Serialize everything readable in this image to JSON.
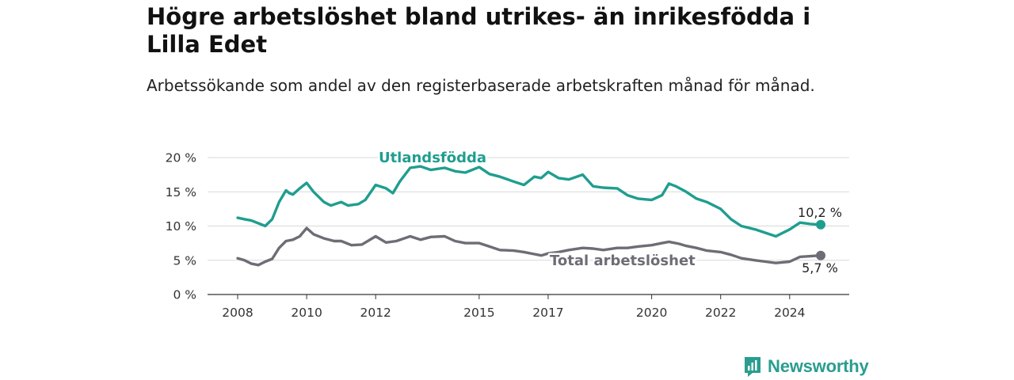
{
  "title": "Högre arbetslöshet bland utrikes- än inrikesfödda i Lilla Edet",
  "subtitle": "Arbetssökande som andel av den registerbaserade arbetskraften månad för månad.",
  "brand": {
    "name": "Newsworthy",
    "color": "#2a9d8f"
  },
  "chart_data": {
    "type": "line",
    "x_ticks": [
      "2008",
      "2010",
      "2012",
      "2015",
      "2017",
      "2020",
      "2022",
      "2024"
    ],
    "y_ticks": [
      "0 %",
      "5 %",
      "10 %",
      "15 %",
      "20 %"
    ],
    "ylim": [
      0,
      20
    ],
    "xlim": [
      2008.0,
      2024.9
    ],
    "grid": true,
    "series": [
      {
        "name": "Utlandsfödda",
        "color": "#1f9e8f",
        "end_label": "10,2 %",
        "x": [
          2008.0,
          2008.2,
          2008.4,
          2008.6,
          2008.8,
          2009.0,
          2009.2,
          2009.4,
          2009.5,
          2009.6,
          2009.8,
          2010.0,
          2010.2,
          2010.5,
          2010.7,
          2011.0,
          2011.2,
          2011.5,
          2011.7,
          2012.0,
          2012.3,
          2012.5,
          2012.7,
          2013.0,
          2013.3,
          2013.6,
          2014.0,
          2014.3,
          2014.6,
          2015.0,
          2015.3,
          2015.6,
          2016.0,
          2016.3,
          2016.6,
          2016.8,
          2017.0,
          2017.3,
          2017.6,
          2018.0,
          2018.3,
          2018.6,
          2019.0,
          2019.3,
          2019.6,
          2020.0,
          2020.3,
          2020.5,
          2020.7,
          2021.0,
          2021.3,
          2021.6,
          2022.0,
          2022.3,
          2022.6,
          2023.0,
          2023.3,
          2023.6,
          2024.0,
          2024.3,
          2024.6,
          2024.9
        ],
        "y": [
          11.2,
          11.0,
          10.8,
          10.4,
          10.0,
          11.0,
          13.5,
          15.2,
          14.8,
          14.6,
          15.5,
          16.3,
          15.0,
          13.5,
          13.0,
          13.5,
          13.0,
          13.2,
          13.8,
          16.0,
          15.5,
          14.8,
          16.5,
          18.5,
          18.7,
          18.2,
          18.5,
          18.0,
          17.8,
          18.6,
          17.6,
          17.2,
          16.5,
          16.0,
          17.2,
          17.0,
          17.9,
          17.0,
          16.8,
          17.5,
          15.8,
          15.6,
          15.5,
          14.5,
          14.0,
          13.8,
          14.5,
          16.2,
          15.8,
          15.0,
          14.0,
          13.5,
          12.5,
          11.0,
          10.0,
          9.5,
          9.0,
          8.5,
          9.5,
          10.5,
          10.3,
          10.2
        ]
      },
      {
        "name": "Total arbetslöshet",
        "color": "#6d6d75",
        "end_label": "5,7 %",
        "x": [
          2008.0,
          2008.2,
          2008.4,
          2008.6,
          2008.8,
          2009.0,
          2009.2,
          2009.4,
          2009.6,
          2009.8,
          2010.0,
          2010.2,
          2010.5,
          2010.8,
          2011.0,
          2011.3,
          2011.6,
          2012.0,
          2012.3,
          2012.6,
          2013.0,
          2013.3,
          2013.6,
          2014.0,
          2014.3,
          2014.6,
          2015.0,
          2015.3,
          2015.6,
          2016.0,
          2016.3,
          2016.6,
          2016.8,
          2017.0,
          2017.3,
          2017.6,
          2018.0,
          2018.3,
          2018.6,
          2019.0,
          2019.3,
          2019.6,
          2020.0,
          2020.3,
          2020.5,
          2020.8,
          2021.0,
          2021.3,
          2021.6,
          2022.0,
          2022.3,
          2022.6,
          2023.0,
          2023.3,
          2023.6,
          2024.0,
          2024.3,
          2024.6,
          2024.9
        ],
        "y": [
          5.3,
          5.0,
          4.5,
          4.3,
          4.8,
          5.2,
          6.8,
          7.8,
          8.0,
          8.5,
          9.7,
          8.8,
          8.2,
          7.8,
          7.8,
          7.2,
          7.3,
          8.5,
          7.6,
          7.8,
          8.5,
          8.0,
          8.4,
          8.5,
          7.8,
          7.5,
          7.5,
          7.0,
          6.5,
          6.4,
          6.2,
          5.9,
          5.7,
          6.0,
          6.2,
          6.5,
          6.8,
          6.7,
          6.5,
          6.8,
          6.8,
          7.0,
          7.2,
          7.5,
          7.7,
          7.4,
          7.1,
          6.8,
          6.4,
          6.2,
          5.8,
          5.3,
          5.0,
          4.8,
          4.6,
          4.8,
          5.5,
          5.6,
          5.7
        ]
      }
    ]
  }
}
